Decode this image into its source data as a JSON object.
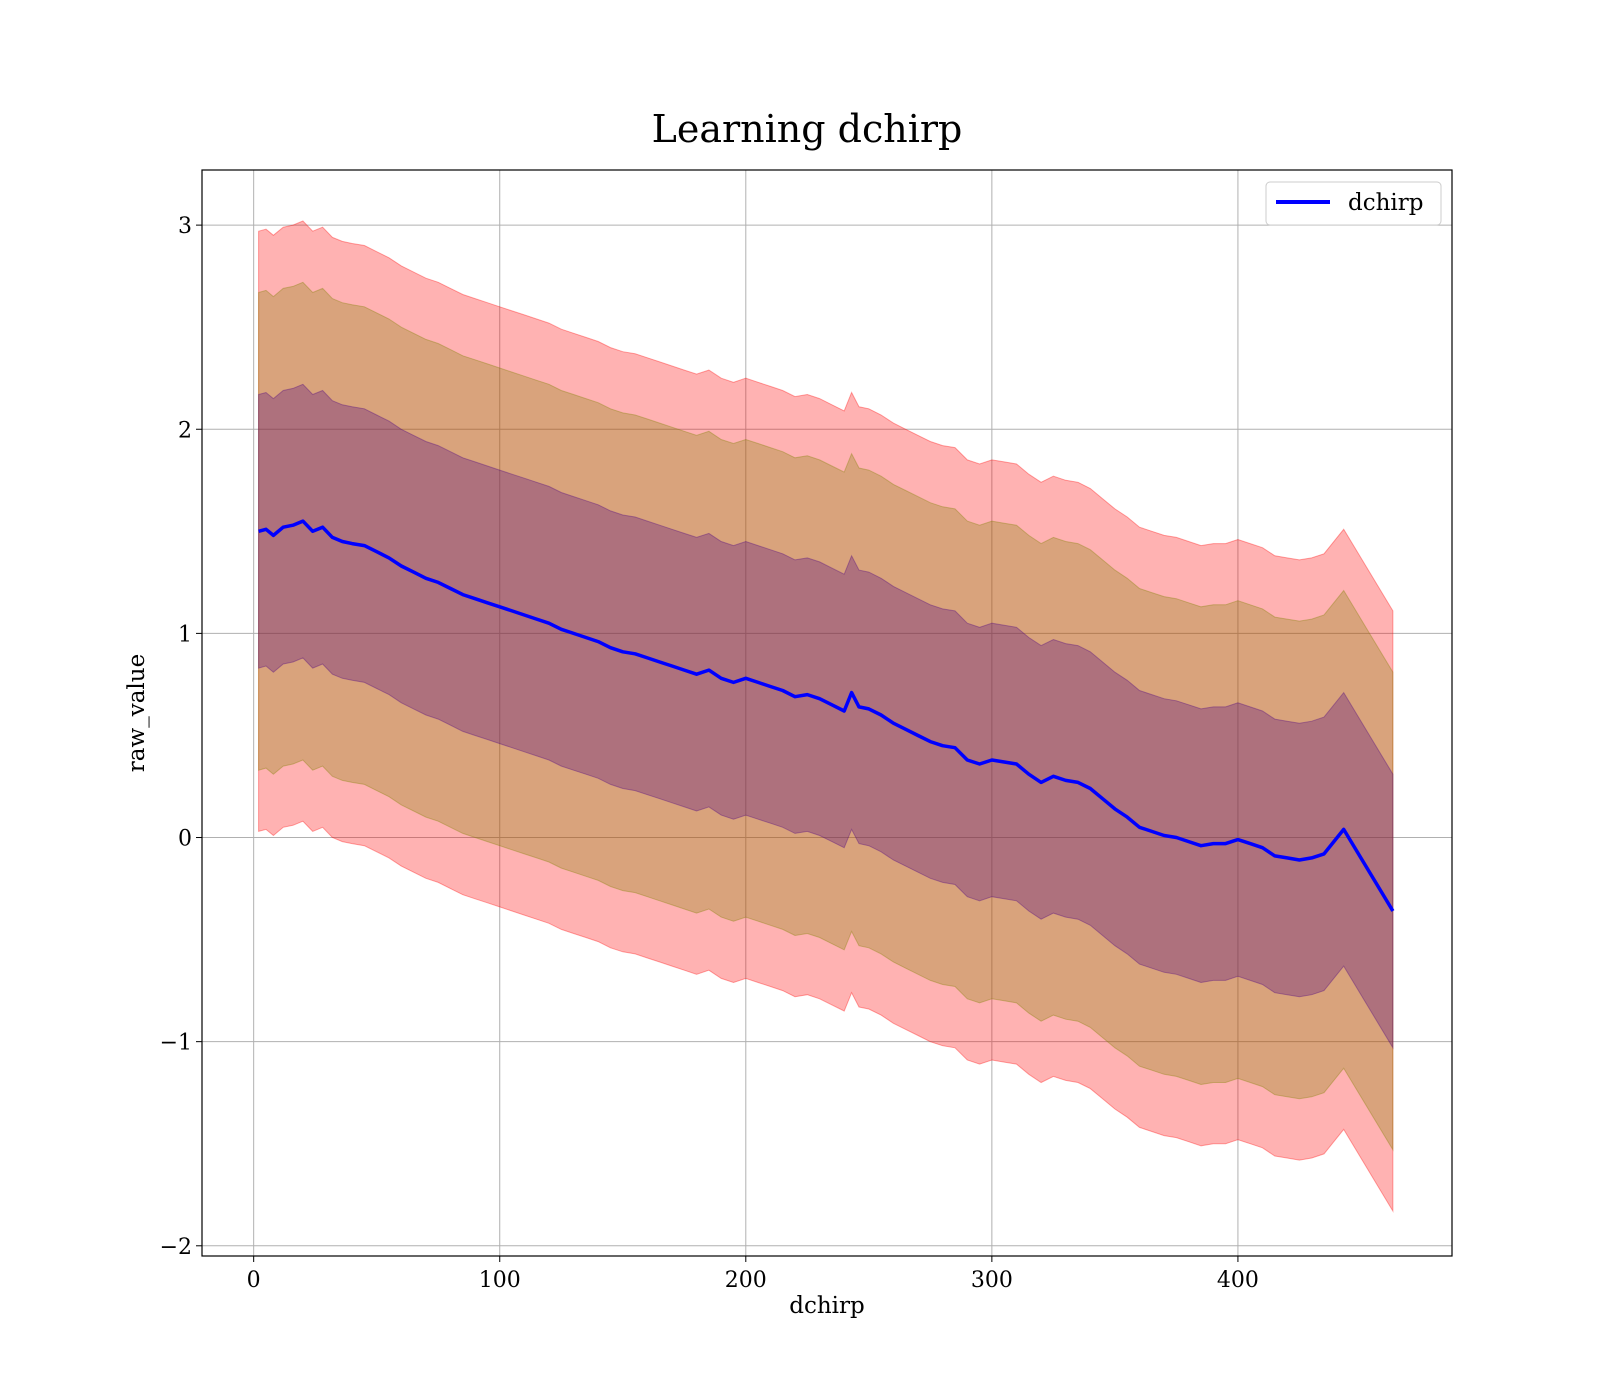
{
  "chart_data": {
    "type": "line",
    "title": "Learning dchirp",
    "xlabel": "dchirp",
    "ylabel": "raw_value",
    "xlim": [
      -21,
      487
    ],
    "ylim": [
      -2.05,
      3.27
    ],
    "x_ticks": [
      0,
      100,
      200,
      300,
      400
    ],
    "x_tick_labels": [
      "0",
      "100",
      "200",
      "300",
      "400"
    ],
    "y_ticks": [
      -2,
      -1,
      0,
      1,
      2,
      3
    ],
    "y_tick_labels": [
      "−2",
      "−1",
      "0",
      "1",
      "2",
      "3"
    ],
    "grid": true,
    "legend": {
      "position": "top-right",
      "entries": [
        "dchirp"
      ]
    },
    "colors": {
      "line": "#0000ff",
      "band_outer": "#ff0000",
      "band_middle": "#808000",
      "band_inner": "#4b0082",
      "grid": "#b0b0b0"
    },
    "band_half_widths": [
      0.67,
      1.17,
      1.47
    ],
    "series": [
      {
        "name": "dchirp",
        "x": [
          2,
          5,
          8,
          12,
          16,
          20,
          24,
          28,
          32,
          36,
          40,
          45,
          50,
          55,
          60,
          65,
          70,
          75,
          80,
          85,
          90,
          95,
          100,
          105,
          110,
          115,
          120,
          125,
          130,
          135,
          140,
          145,
          150,
          155,
          160,
          165,
          170,
          175,
          180,
          185,
          190,
          195,
          200,
          205,
          210,
          215,
          220,
          225,
          230,
          235,
          240,
          243,
          246,
          250,
          255,
          260,
          265,
          270,
          275,
          280,
          285,
          290,
          295,
          300,
          305,
          310,
          315,
          320,
          325,
          330,
          335,
          340,
          345,
          350,
          355,
          360,
          365,
          370,
          375,
          380,
          385,
          390,
          395,
          400,
          405,
          410,
          415,
          420,
          425,
          430,
          435,
          443,
          463
        ],
        "y": [
          1.5,
          1.51,
          1.48,
          1.52,
          1.53,
          1.55,
          1.5,
          1.52,
          1.47,
          1.45,
          1.44,
          1.43,
          1.4,
          1.37,
          1.33,
          1.3,
          1.27,
          1.25,
          1.22,
          1.19,
          1.17,
          1.15,
          1.13,
          1.11,
          1.09,
          1.07,
          1.05,
          1.02,
          1.0,
          0.98,
          0.96,
          0.93,
          0.91,
          0.9,
          0.88,
          0.86,
          0.84,
          0.82,
          0.8,
          0.82,
          0.78,
          0.76,
          0.78,
          0.76,
          0.74,
          0.72,
          0.69,
          0.7,
          0.68,
          0.65,
          0.62,
          0.71,
          0.64,
          0.63,
          0.6,
          0.56,
          0.53,
          0.5,
          0.47,
          0.45,
          0.44,
          0.38,
          0.36,
          0.38,
          0.37,
          0.36,
          0.31,
          0.27,
          0.3,
          0.28,
          0.27,
          0.24,
          0.19,
          0.14,
          0.1,
          0.05,
          0.03,
          0.01,
          0.0,
          -0.02,
          -0.04,
          -0.03,
          -0.03,
          -0.01,
          -0.03,
          -0.05,
          -0.09,
          -0.1,
          -0.11,
          -0.1,
          -0.08,
          0.04,
          -0.36
        ]
      }
    ]
  }
}
